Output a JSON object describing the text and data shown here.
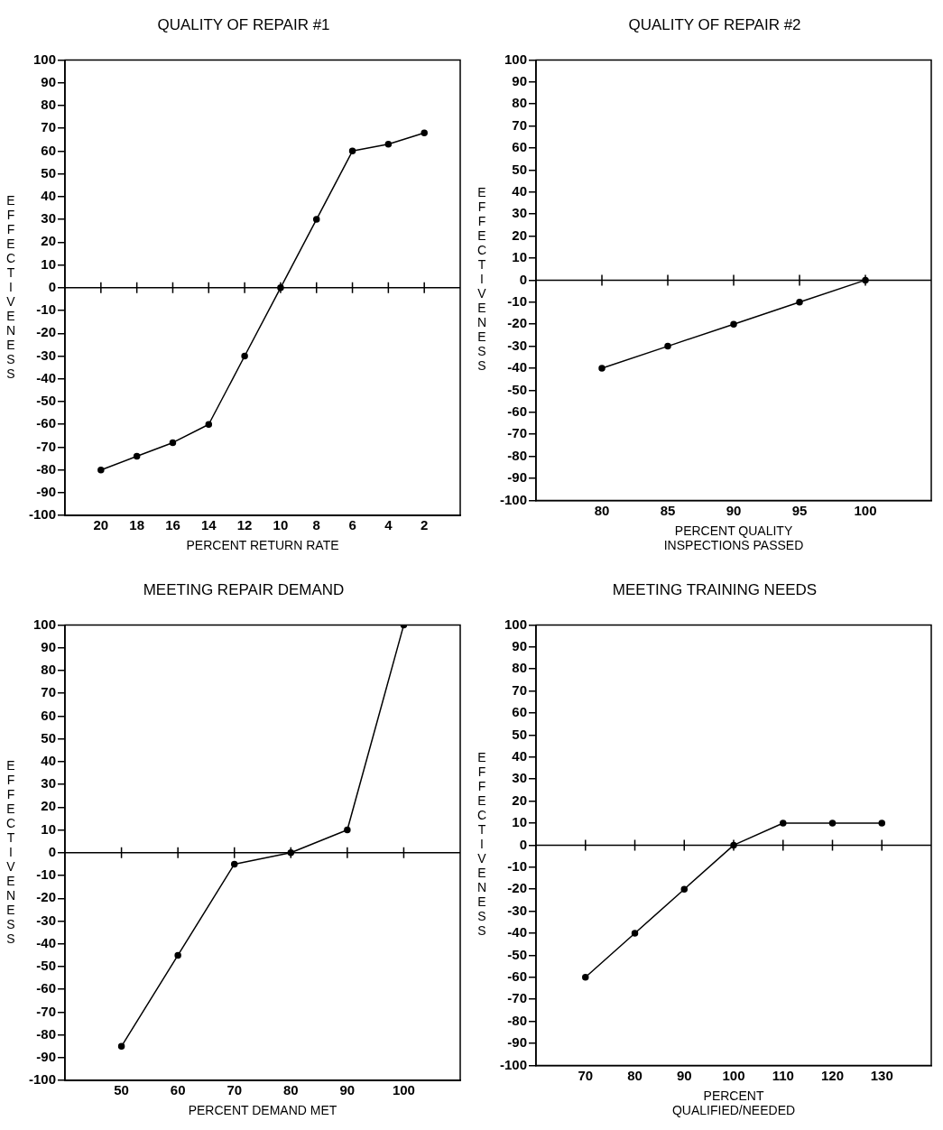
{
  "chart_data": [
    {
      "type": "line",
      "title": "QUALITY OF REPAIR #1",
      "xlabel": "PERCENT RETURN RATE",
      "ylabel": "EFFECTIVENESS",
      "x": [
        20,
        18,
        16,
        14,
        12,
        10,
        8,
        6,
        4,
        2
      ],
      "values": [
        -80,
        -74,
        -68,
        -60,
        -30,
        0,
        30,
        60,
        63,
        68
      ],
      "color": "#000000",
      "xlim": [
        22,
        0
      ],
      "xticks": [
        20,
        18,
        16,
        14,
        12,
        10,
        8,
        6,
        4,
        2
      ],
      "ylim": [
        -100,
        100
      ],
      "yticks": [
        -100,
        -90,
        -80,
        -70,
        -60,
        -50,
        -40,
        -30,
        -20,
        -10,
        0,
        10,
        20,
        30,
        40,
        50,
        60,
        70,
        80,
        90,
        100
      ],
      "grid": false,
      "legend": false,
      "marker": "circle",
      "line_style": "solid",
      "ref_lines": [
        {
          "axis": "y",
          "value": 0,
          "color": "#000000"
        }
      ]
    },
    {
      "type": "line",
      "title": "QUALITY OF REPAIR #2",
      "xlabel": "PERCENT QUALITY\nINSPECTIONS PASSED",
      "ylabel": "EFFECTIVENESS",
      "x": [
        80,
        85,
        90,
        95,
        100
      ],
      "values": [
        -40,
        -30,
        -20,
        -10,
        0
      ],
      "color": "#000000",
      "xlim": [
        75,
        105
      ],
      "xticks": [
        80,
        85,
        90,
        95,
        100
      ],
      "ylim": [
        -100,
        100
      ],
      "yticks": [
        -100,
        -90,
        -80,
        -70,
        -60,
        -50,
        -40,
        -30,
        -20,
        -10,
        0,
        10,
        20,
        30,
        40,
        50,
        60,
        70,
        80,
        90,
        100
      ],
      "grid": false,
      "legend": false,
      "marker": "circle",
      "line_style": "solid",
      "ref_lines": [
        {
          "axis": "y",
          "value": 0,
          "color": "#000000"
        }
      ]
    },
    {
      "type": "line",
      "title": "MEETING REPAIR DEMAND",
      "xlabel": "PERCENT DEMAND MET",
      "ylabel": "EFFECTIVENESS",
      "x": [
        50,
        60,
        70,
        80,
        90,
        100
      ],
      "values": [
        -85,
        -45,
        -5,
        0,
        10,
        100
      ],
      "color": "#000000",
      "xlim": [
        40,
        110
      ],
      "xticks": [
        50,
        60,
        70,
        80,
        90,
        100
      ],
      "ylim": [
        -100,
        100
      ],
      "yticks": [
        -100,
        -90,
        -80,
        -70,
        -60,
        -50,
        -40,
        -30,
        -20,
        -10,
        0,
        10,
        20,
        30,
        40,
        50,
        60,
        70,
        80,
        90,
        100
      ],
      "grid": false,
      "legend": false,
      "marker": "circle",
      "line_style": "solid",
      "ref_lines": [
        {
          "axis": "y",
          "value": 0,
          "color": "#000000"
        }
      ]
    },
    {
      "type": "line",
      "title": "MEETING TRAINING NEEDS",
      "xlabel": "PERCENT\nQUALIFIED/NEEDED",
      "ylabel": "EFFECTIVENESS",
      "x": [
        70,
        80,
        90,
        100,
        110,
        120,
        130
      ],
      "values": [
        -60,
        -40,
        -20,
        0,
        10,
        10,
        10
      ],
      "color": "#000000",
      "xlim": [
        60,
        140
      ],
      "xticks": [
        70,
        80,
        90,
        100,
        110,
        120,
        130
      ],
      "ylim": [
        -100,
        100
      ],
      "yticks": [
        -100,
        -90,
        -80,
        -70,
        -60,
        -50,
        -40,
        -30,
        -20,
        -10,
        0,
        10,
        20,
        30,
        40,
        50,
        60,
        70,
        80,
        90,
        100
      ],
      "grid": false,
      "legend": false,
      "marker": "circle",
      "line_style": "solid",
      "ref_lines": [
        {
          "axis": "y",
          "value": 0,
          "color": "#000000"
        }
      ]
    }
  ]
}
